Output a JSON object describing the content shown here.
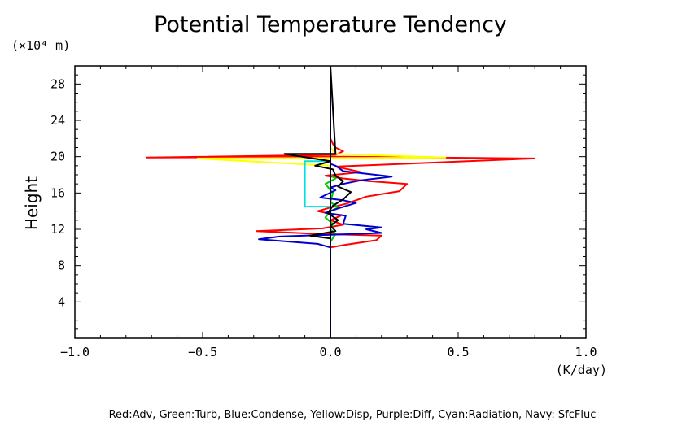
{
  "chart_data": {
    "type": "line",
    "title": "Potential Temperature Tendency",
    "ylabel": "Height",
    "yunit": "(×10⁴ m)",
    "xunit": "(K/day)",
    "xlim": [
      -1.0,
      1.0
    ],
    "ylim": [
      0,
      30
    ],
    "xticks": [
      "−1.0",
      "−0.5",
      "0.0",
      "0.5",
      "1.0"
    ],
    "yticks": [
      "4",
      "8",
      "12",
      "16",
      "20",
      "24",
      "28"
    ],
    "legend": "Red:Adv, Green:Turb, Blue:Condense, Yellow:Disp, Purple:Diff, Cyan:Radiation, Navy: SfcFluc",
    "series": [
      {
        "name": "Adv",
        "color": "#ff0000",
        "points": [
          [
            0,
            0
          ],
          [
            0,
            7
          ],
          [
            0,
            8
          ],
          [
            0,
            9
          ],
          [
            0,
            10
          ],
          [
            0.06,
            10.3
          ],
          [
            0.18,
            10.8
          ],
          [
            0.2,
            11.3
          ],
          [
            -0.05,
            11.5
          ],
          [
            -0.29,
            11.8
          ],
          [
            -0.03,
            12.1
          ],
          [
            0.05,
            12.5
          ],
          [
            0,
            13
          ],
          [
            0.04,
            13.5
          ],
          [
            -0.05,
            14
          ],
          [
            0,
            14.4
          ],
          [
            0.06,
            14.8
          ],
          [
            0.1,
            15.2
          ],
          [
            0.14,
            15.6
          ],
          [
            0.27,
            16.2
          ],
          [
            0.3,
            17
          ],
          [
            0.15,
            17.3
          ],
          [
            0.05,
            17.6
          ],
          [
            -0.02,
            17.9
          ],
          [
            0.12,
            18.3
          ],
          [
            0.02,
            18.9
          ],
          [
            0.8,
            19.8
          ],
          [
            0.05,
            20.0
          ],
          [
            -0.72,
            19.9
          ],
          [
            0.02,
            20.2
          ],
          [
            0.05,
            20.6
          ],
          [
            0.02,
            21.0
          ],
          [
            0.01,
            21.4
          ],
          [
            0,
            22
          ],
          [
            0,
            30
          ]
        ]
      },
      {
        "name": "Turb",
        "color": "#00cc00",
        "points": [
          [
            0,
            10
          ],
          [
            0,
            10.6
          ],
          [
            0.02,
            11.5
          ],
          [
            0,
            12
          ],
          [
            0.01,
            12.6
          ],
          [
            -0.02,
            13.3
          ],
          [
            0,
            14
          ],
          [
            0.03,
            14.4
          ],
          [
            0,
            15
          ],
          [
            0.01,
            16
          ],
          [
            -0.02,
            17
          ],
          [
            0.02,
            17.6
          ],
          [
            0,
            18
          ],
          [
            0,
            30
          ]
        ]
      },
      {
        "name": "Condense",
        "color": "#0000cc",
        "points": [
          [
            0,
            0
          ],
          [
            0,
            10
          ],
          [
            -0.05,
            10.4
          ],
          [
            -0.28,
            10.9
          ],
          [
            -0.2,
            11.2
          ],
          [
            0.2,
            11.6
          ],
          [
            0.14,
            12
          ],
          [
            0.2,
            12.2
          ],
          [
            0.05,
            12.6
          ],
          [
            0.06,
            13.5
          ],
          [
            -0.02,
            13.8
          ],
          [
            0.03,
            14.3
          ],
          [
            0.1,
            14.9
          ],
          [
            0.05,
            15.2
          ],
          [
            -0.04,
            15.5
          ],
          [
            0.02,
            16.3
          ],
          [
            0,
            16.6
          ],
          [
            0.05,
            17
          ],
          [
            0.12,
            17.4
          ],
          [
            0.24,
            17.8
          ],
          [
            0.05,
            18.4
          ],
          [
            0.02,
            19
          ],
          [
            0,
            19.2
          ],
          [
            0,
            30
          ]
        ]
      },
      {
        "name": "Disp",
        "color": "#ffff00",
        "points": [
          [
            0,
            19
          ],
          [
            -0.52,
            19.8
          ],
          [
            0.45,
            19.9
          ],
          [
            0.02,
            20.3
          ],
          [
            0,
            21
          ],
          [
            0,
            30
          ]
        ]
      },
      {
        "name": "Radiation",
        "color": "#00e0e0",
        "points": [
          [
            0,
            14.5
          ],
          [
            -0.1,
            14.5
          ],
          [
            -0.1,
            19.5
          ],
          [
            0,
            19.5
          ]
        ]
      },
      {
        "name": "Diff",
        "color": "#800080",
        "points": [
          [
            0,
            0
          ],
          [
            0,
            30
          ]
        ]
      },
      {
        "name": "SfcFluc",
        "color": "#000080",
        "points": [
          [
            0,
            0
          ],
          [
            0,
            30
          ]
        ]
      },
      {
        "name": "",
        "color": "#000000",
        "points": [
          [
            0,
            11
          ],
          [
            -0.08,
            11.3
          ],
          [
            0.02,
            11.8
          ],
          [
            0,
            12.4
          ],
          [
            0.03,
            13
          ],
          [
            -0.01,
            13.8
          ],
          [
            0.01,
            14.6
          ],
          [
            0.05,
            15.3
          ],
          [
            0.08,
            16.1
          ],
          [
            0.03,
            16.7
          ],
          [
            0.05,
            17.3
          ],
          [
            0.02,
            17.9
          ],
          [
            0.01,
            18.6
          ],
          [
            -0.06,
            19
          ],
          [
            0,
            19.5
          ],
          [
            -0.18,
            20.3
          ],
          [
            0.02,
            20.3
          ],
          [
            0,
            30
          ]
        ]
      }
    ]
  }
}
